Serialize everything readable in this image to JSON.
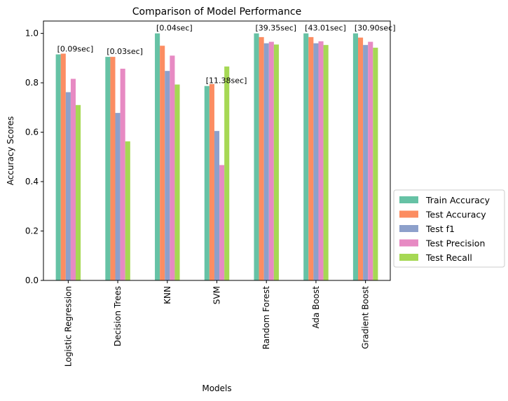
{
  "chart_data": {
    "type": "bar",
    "title": "Comparison of Model Performance",
    "xlabel": "Models",
    "ylabel": "Accuracy Scores",
    "ylim": [
      0,
      1.05
    ],
    "yticks": [
      "0.0",
      "0.2",
      "0.4",
      "0.6",
      "0.8",
      "1.0"
    ],
    "grid": false,
    "legend_position": "right-bottom",
    "categories": [
      "Logistic Regression",
      "Decision Trees",
      "KNN",
      "SVM",
      "Random Forest",
      "Ada Boost",
      "Gradient Boost"
    ],
    "series": [
      {
        "name": "Train Accuracy",
        "color": "#66c2a5",
        "values": [
          0.915,
          0.905,
          1.0,
          0.787,
          1.0,
          1.0,
          1.0
        ]
      },
      {
        "name": "Test Accuracy",
        "color": "#fc8d62",
        "values": [
          0.918,
          0.905,
          0.95,
          0.795,
          0.985,
          0.985,
          0.983
        ]
      },
      {
        "name": "Test f1",
        "color": "#8da0cb",
        "values": [
          0.762,
          0.678,
          0.848,
          0.605,
          0.96,
          0.96,
          0.953
        ]
      },
      {
        "name": "Test Precision",
        "color": "#e78ac3",
        "values": [
          0.816,
          0.857,
          0.91,
          0.467,
          0.966,
          0.968,
          0.966
        ]
      },
      {
        "name": "Test Recall",
        "color": "#a6d854",
        "values": [
          0.71,
          0.563,
          0.793,
          0.866,
          0.955,
          0.953,
          0.942
        ]
      }
    ],
    "annotations": [
      "[0.09sec]",
      "[0.03sec]",
      "[0.04sec]",
      "[11.38sec]",
      "[39.35sec]",
      "[43.01sec]",
      "[30.90sec]"
    ]
  }
}
